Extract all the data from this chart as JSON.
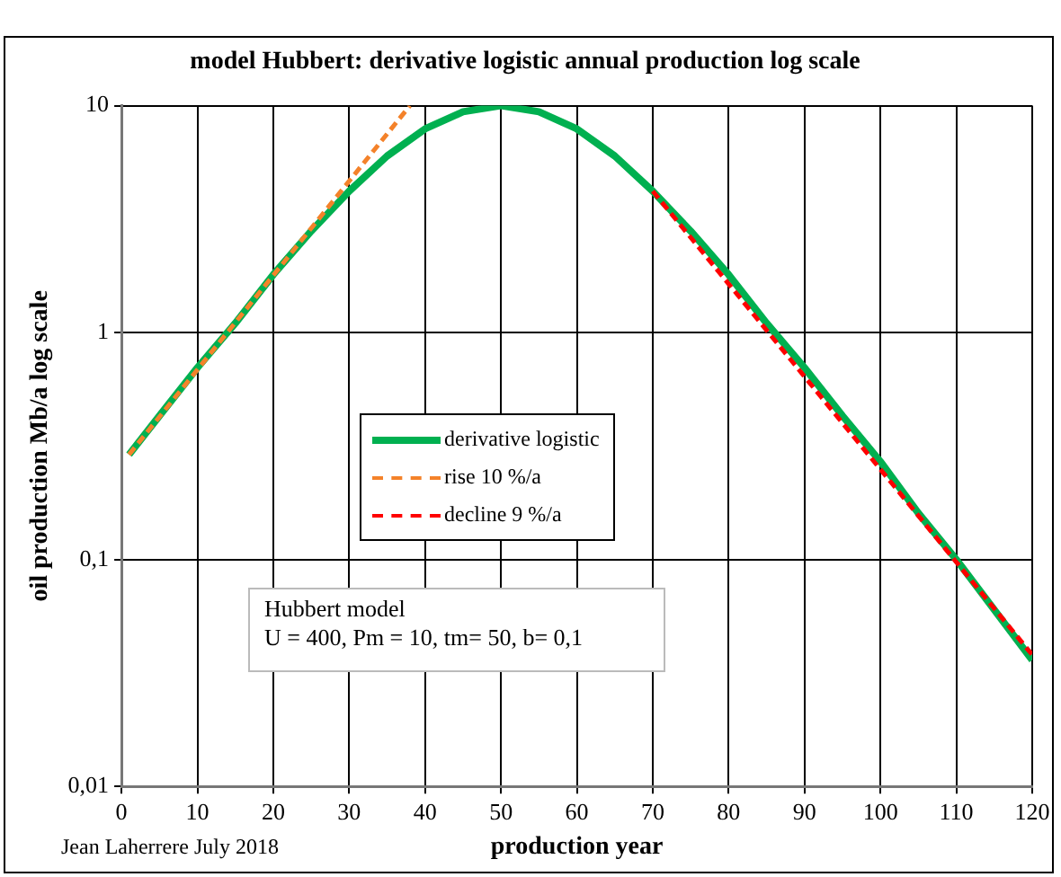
{
  "chart_data": {
    "type": "line",
    "title": "model Hubbert: derivative logistic annual production log scale",
    "xlabel": "production year",
    "ylabel": "oil production Mb/a log scale",
    "log": "y",
    "xlim": [
      0,
      120
    ],
    "xticks": [
      0,
      10,
      20,
      30,
      40,
      50,
      60,
      70,
      80,
      90,
      100,
      110,
      120
    ],
    "ylim": [
      0.01,
      10
    ],
    "yticks": [
      {
        "value": 0.01,
        "label": "0,01"
      },
      {
        "value": 0.1,
        "label": "0,1"
      },
      {
        "value": 1,
        "label": "1"
      },
      {
        "value": 10,
        "label": "10"
      }
    ],
    "grid": true,
    "legend": "center",
    "marker": "none",
    "series": [
      {
        "name": "derivative logistic",
        "color": "#00b050",
        "line_style": "solid",
        "x": [
          1,
          5,
          10,
          15,
          20,
          25,
          30,
          35,
          40,
          45,
          50,
          55,
          60,
          65,
          70,
          75,
          80,
          85,
          90,
          95,
          100,
          105,
          110,
          115,
          120
        ],
        "values": [
          0.29,
          0.43,
          0.7,
          1.1,
          1.8,
          2.8,
          4.2,
          6,
          7.9,
          9.4,
          10,
          9.4,
          7.9,
          6,
          4.2,
          2.8,
          1.8,
          1.1,
          0.7,
          0.43,
          0.27,
          0.16,
          0.1,
          0.06,
          0.036
        ]
      },
      {
        "name": "rise 10 %/a",
        "color": "#f4822a",
        "line_style": "dashed",
        "x": [
          1,
          38
        ],
        "values": [
          0.29,
          10
        ]
      },
      {
        "name": "decline 9 %/a",
        "color": "#ff0000",
        "line_style": "dashed",
        "x": [
          70,
          120
        ],
        "values": [
          4.2,
          0.038
        ]
      }
    ],
    "annotations": [
      "Hubbert model",
      "U = 400, Pm = 10, tm= 50, b= 0,1",
      "Jean Laherrere July 2018"
    ]
  }
}
